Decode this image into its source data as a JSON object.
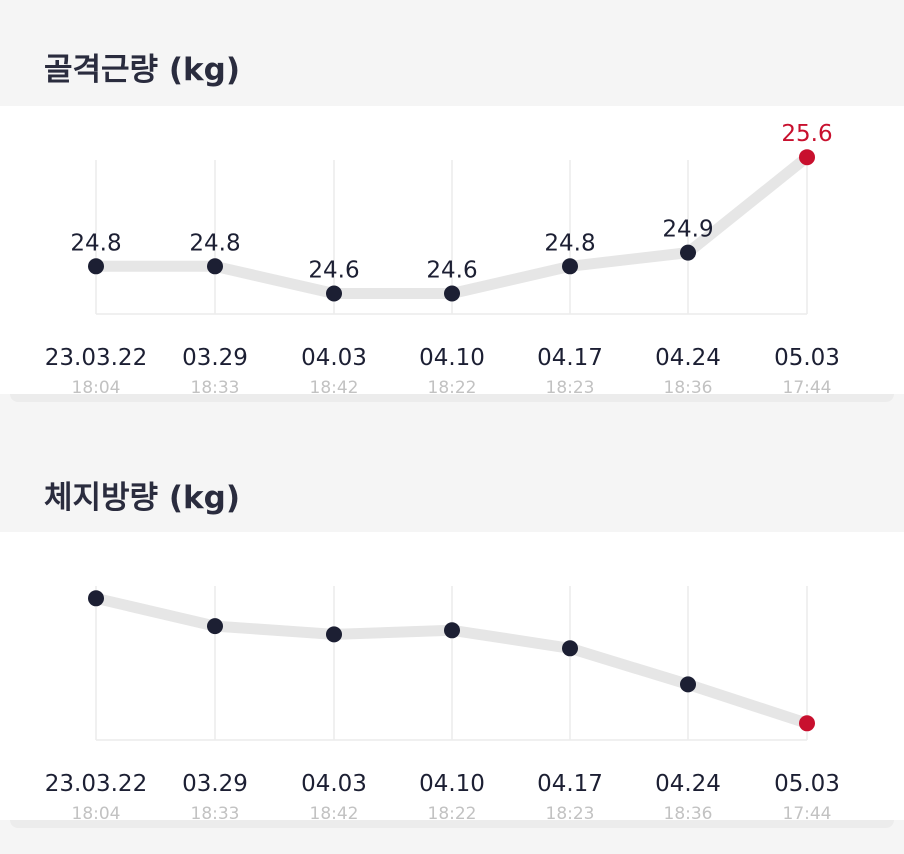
{
  "colors": {
    "accent": "#c8102e",
    "point": "#1c1f33",
    "line": "#e6e6e6",
    "grid": "#ececec",
    "time": "#c2c2c2"
  },
  "chart_data": [
    {
      "type": "line",
      "title": "골격근량 (kg)",
      "categories": [
        "23.03.22",
        "03.29",
        "04.03",
        "04.10",
        "04.17",
        "04.24",
        "05.03"
      ],
      "times": [
        "18:04",
        "18:33",
        "18:42",
        "18:22",
        "18:23",
        "18:36",
        "17:44"
      ],
      "values": [
        24.8,
        24.8,
        24.6,
        24.6,
        24.8,
        24.9,
        25.6
      ],
      "value_labels": [
        "24.8",
        "24.8",
        "24.6",
        "24.6",
        "24.8",
        "24.9",
        "25.6"
      ],
      "show_value_labels": true,
      "highlight_index": 6,
      "ylim": [
        24.45,
        25.55
      ],
      "grid": "vertical"
    },
    {
      "type": "line",
      "title": "체지방량 (kg)",
      "categories": [
        "23.03.22",
        "03.29",
        "04.03",
        "04.10",
        "04.17",
        "04.24",
        "05.03"
      ],
      "times": [
        "18:04",
        "18:33",
        "18:42",
        "18:22",
        "18:23",
        "18:36",
        "17:44"
      ],
      "values": [
        12.0,
        11.0,
        10.7,
        10.85,
        10.2,
        8.9,
        7.5
      ],
      "value_labels": [],
      "show_value_labels": false,
      "highlight_index": 6,
      "ylim": [
        6.9,
        12.3
      ],
      "grid": "vertical"
    }
  ]
}
